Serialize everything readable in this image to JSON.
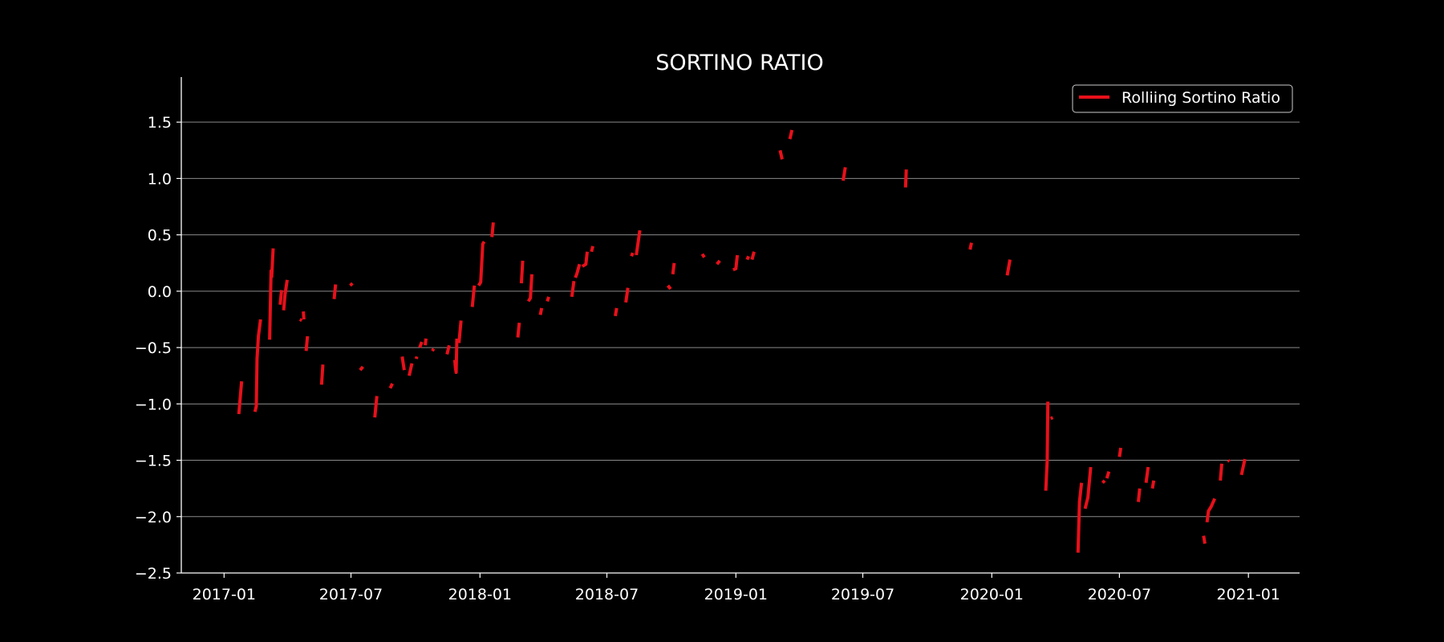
{
  "chart_data": {
    "type": "line",
    "title": "SORTINO RATIO",
    "xlabel": "",
    "ylabel": "",
    "x_axis_type": "date",
    "xlim": [
      "2016-11-01",
      "2021-03-15"
    ],
    "ylim": [
      -2.5,
      1.9
    ],
    "x_ticks": [
      "2017-01",
      "2017-07",
      "2018-01",
      "2018-07",
      "2019-01",
      "2019-07",
      "2020-01",
      "2020-07",
      "2021-01"
    ],
    "y_ticks": [
      -2.5,
      -2.0,
      -1.5,
      -1.0,
      -0.5,
      0.0,
      0.5,
      1.0,
      1.5
    ],
    "y_tick_labels": [
      "−2.5",
      "−2.0",
      "−1.5",
      "−1.0",
      "−0.5",
      "0.0",
      "0.5",
      "1.0",
      "1.5"
    ],
    "grid": "horizontal",
    "legend": "top-right",
    "series": [
      {
        "name": "Rolliing Sortino Ratio",
        "color": "#e8101a",
        "segments": [
          [
            [
              "2017-01-22",
              -1.09
            ],
            [
              "2017-01-26",
              -0.8
            ]
          ],
          [
            [
              "2017-02-14",
              -1.07
            ],
            [
              "2017-02-16",
              -1.02
            ],
            [
              "2017-02-17",
              -0.6
            ],
            [
              "2017-02-19",
              -0.4
            ],
            [
              "2017-02-22",
              -0.25
            ]
          ],
          [
            [
              "2017-03-07",
              -0.43
            ],
            [
              "2017-03-09",
              0.18
            ],
            [
              "2017-03-10",
              0.13
            ],
            [
              "2017-03-12",
              0.38
            ]
          ],
          [
            [
              "2017-03-22",
              -0.12
            ],
            [
              "2017-03-24",
              0.01
            ]
          ],
          [
            [
              "2017-03-27",
              -0.17
            ],
            [
              "2017-03-29",
              -0.03
            ],
            [
              "2017-04-01",
              0.1
            ]
          ],
          [
            [
              "2017-04-19",
              -0.25
            ],
            [
              "2017-04-22",
              -0.26
            ]
          ],
          [
            [
              "2017-04-24",
              -0.18
            ],
            [
              "2017-04-25",
              -0.25
            ]
          ],
          [
            [
              "2017-04-28",
              -0.53
            ],
            [
              "2017-04-30",
              -0.4
            ]
          ],
          [
            [
              "2017-05-20",
              -0.83
            ],
            [
              "2017-05-22",
              -0.65
            ]
          ],
          [
            [
              "2017-06-07",
              -0.07
            ],
            [
              "2017-06-09",
              0.06
            ]
          ],
          [
            [
              "2017-06-30",
              0.07
            ],
            [
              "2017-07-03",
              0.05
            ]
          ],
          [
            [
              "2017-07-14",
              -0.7
            ],
            [
              "2017-07-18",
              -0.67
            ]
          ],
          [
            [
              "2017-08-04",
              -1.12
            ],
            [
              "2017-08-07",
              -0.93
            ]
          ],
          [
            [
              "2017-08-26",
              -0.86
            ],
            [
              "2017-08-29",
              -0.82
            ]
          ],
          [
            [
              "2017-09-12",
              -0.58
            ],
            [
              "2017-09-15",
              -0.7
            ]
          ],
          [
            [
              "2017-09-22",
              -0.75
            ],
            [
              "2017-09-26",
              -0.64
            ]
          ],
          [
            [
              "2017-10-02",
              -0.6
            ],
            [
              "2017-10-03",
              -0.58
            ]
          ],
          [
            [
              "2017-10-07",
              -0.5
            ],
            [
              "2017-10-10",
              -0.45
            ]
          ],
          [
            [
              "2017-10-15",
              -0.48
            ],
            [
              "2017-10-16",
              -0.42
            ]
          ],
          [
            [
              "2017-10-25",
              -0.53
            ],
            [
              "2017-10-27",
              -0.51
            ]
          ],
          [
            [
              "2017-11-15",
              -0.56
            ],
            [
              "2017-11-18",
              -0.48
            ]
          ],
          [
            [
              "2017-11-26",
              -0.61
            ],
            [
              "2017-11-27",
              -0.68
            ],
            [
              "2017-11-28",
              -0.72
            ],
            [
              "2017-11-29",
              -0.42
            ]
          ],
          [
            [
              "2017-12-02",
              -0.46
            ],
            [
              "2017-12-05",
              -0.26
            ]
          ],
          [
            [
              "2017-12-21",
              -0.14
            ],
            [
              "2017-12-24",
              0.05
            ]
          ],
          [
            [
              "2017-12-30",
              0.05
            ],
            [
              "2018-01-02",
              0.08
            ],
            [
              "2018-01-05",
              0.42
            ],
            [
              "2018-01-07",
              0.44
            ]
          ],
          [
            [
              "2018-01-18",
              0.48
            ],
            [
              "2018-01-20",
              0.61
            ]
          ],
          [
            [
              "2018-02-24",
              -0.41
            ],
            [
              "2018-02-26",
              -0.28
            ]
          ],
          [
            [
              "2018-03-01",
              0.07
            ],
            [
              "2018-03-03",
              0.27
            ]
          ],
          [
            [
              "2018-03-11",
              -0.09
            ],
            [
              "2018-03-14",
              -0.06
            ],
            [
              "2018-03-16",
              0.15
            ]
          ],
          [
            [
              "2018-03-28",
              -0.21
            ],
            [
              "2018-03-30",
              -0.15
            ]
          ],
          [
            [
              "2018-04-07",
              -0.09
            ],
            [
              "2018-04-09",
              -0.05
            ]
          ],
          [
            [
              "2018-05-12",
              -0.05
            ],
            [
              "2018-05-15",
              0.09
            ]
          ],
          [
            [
              "2018-05-17",
              0.12
            ],
            [
              "2018-05-19",
              0.15
            ],
            [
              "2018-05-23",
              0.24
            ]
          ],
          [
            [
              "2018-05-27",
              0.22
            ],
            [
              "2018-06-01",
              0.24
            ],
            [
              "2018-06-03",
              0.35
            ]
          ],
          [
            [
              "2018-06-09",
              0.35
            ],
            [
              "2018-06-11",
              0.4
            ]
          ],
          [
            [
              "2018-07-13",
              -0.22
            ],
            [
              "2018-07-15",
              -0.15
            ]
          ],
          [
            [
              "2018-07-28",
              -0.1
            ],
            [
              "2018-07-31",
              0.03
            ]
          ],
          [
            [
              "2018-08-05",
              0.31
            ],
            [
              "2018-08-07",
              0.34
            ]
          ],
          [
            [
              "2018-08-12",
              0.32
            ],
            [
              "2018-08-17",
              0.54
            ]
          ],
          [
            [
              "2018-09-26",
              0.05
            ],
            [
              "2018-09-30",
              0.02
            ]
          ],
          [
            [
              "2018-10-03",
              0.15
            ],
            [
              "2018-10-05",
              0.25
            ]
          ],
          [
            [
              "2018-11-14",
              0.33
            ],
            [
              "2018-11-17",
              0.3
            ]
          ],
          [
            [
              "2018-12-05",
              0.24
            ],
            [
              "2018-12-09",
              0.27
            ]
          ],
          [
            [
              "2018-12-28",
              0.19
            ],
            [
              "2019-01-01",
              0.2
            ],
            [
              "2019-01-03",
              0.32
            ]
          ],
          [
            [
              "2019-01-17",
              0.28
            ],
            [
              "2019-01-19",
              0.31
            ]
          ],
          [
            [
              "2019-01-24",
              0.28
            ],
            [
              "2019-01-27",
              0.35
            ]
          ],
          [
            [
              "2019-03-05",
              1.25
            ],
            [
              "2019-03-08",
              1.17
            ]
          ],
          [
            [
              "2019-03-19",
              1.35
            ],
            [
              "2019-03-22",
              1.43
            ]
          ],
          [
            [
              "2019-06-03",
              0.98
            ],
            [
              "2019-06-06",
              1.1
            ]
          ],
          [
            [
              "2019-08-31",
              0.92
            ],
            [
              "2019-09-01",
              1.08
            ]
          ],
          [
            [
              "2019-12-01",
              0.37
            ],
            [
              "2019-12-03",
              0.43
            ]
          ],
          [
            [
              "2020-01-23",
              0.14
            ],
            [
              "2020-01-27",
              0.28
            ]
          ],
          [
            [
              "2020-03-18",
              -1.77
            ],
            [
              "2020-03-20",
              -1.5
            ],
            [
              "2020-03-21",
              -0.98
            ]
          ],
          [
            [
              "2020-03-25",
              -1.13
            ],
            [
              "2020-03-28",
              -1.12
            ]
          ],
          [
            [
              "2020-05-03",
              -2.32
            ],
            [
              "2020-05-05",
              -1.87
            ],
            [
              "2020-05-08",
              -1.7
            ]
          ],
          [
            [
              "2020-05-13",
              -1.93
            ],
            [
              "2020-05-17",
              -1.83
            ],
            [
              "2020-05-21",
              -1.56
            ]
          ],
          [
            [
              "2020-06-07",
              -1.7
            ],
            [
              "2020-06-10",
              -1.68
            ]
          ],
          [
            [
              "2020-06-13",
              -1.66
            ],
            [
              "2020-06-16",
              -1.6
            ]
          ],
          [
            [
              "2020-07-01",
              -1.47
            ],
            [
              "2020-07-03",
              -1.39
            ]
          ],
          [
            [
              "2020-07-28",
              -1.87
            ],
            [
              "2020-07-30",
              -1.75
            ]
          ],
          [
            [
              "2020-08-08",
              -1.7
            ],
            [
              "2020-08-11",
              -1.56
            ]
          ],
          [
            [
              "2020-08-17",
              -1.75
            ],
            [
              "2020-08-19",
              -1.68
            ]
          ],
          [
            [
              "2020-10-29",
              -2.17
            ],
            [
              "2020-10-31",
              -2.24
            ]
          ],
          [
            [
              "2020-11-03",
              -2.05
            ],
            [
              "2020-11-05",
              -1.95
            ],
            [
              "2020-11-09",
              -1.91
            ],
            [
              "2020-11-14",
              -1.84
            ]
          ],
          [
            [
              "2020-11-22",
              -1.68
            ],
            [
              "2020-11-24",
              -1.53
            ]
          ],
          [
            [
              "2020-12-03",
              -1.5
            ],
            [
              "2020-12-05",
              -1.51
            ]
          ],
          [
            [
              "2020-12-22",
              -1.63
            ],
            [
              "2020-12-27",
              -1.49
            ]
          ]
        ]
      }
    ]
  }
}
